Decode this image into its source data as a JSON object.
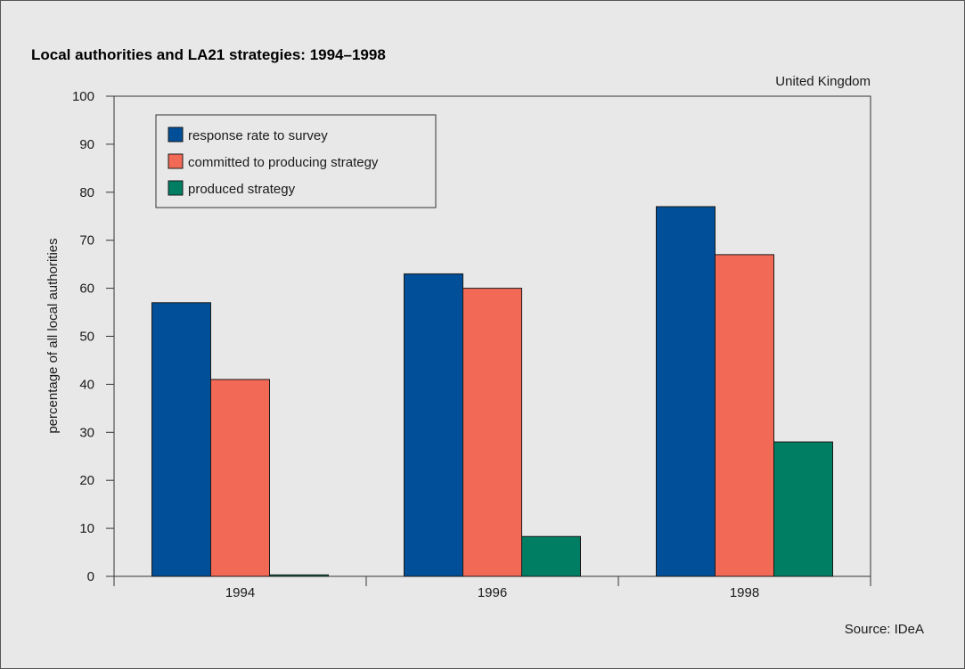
{
  "chart_data": {
    "type": "bar",
    "title": "Local authorities and LA21 strategies: 1994–1998",
    "subtitle": "United Kingdom",
    "source": "Source: IDeA",
    "xlabel": "",
    "ylabel": "percentage of all local authorities",
    "ylim": [
      0,
      100
    ],
    "yticks": [
      0,
      10,
      20,
      30,
      40,
      50,
      60,
      70,
      80,
      90,
      100
    ],
    "categories": [
      "1994",
      "1996",
      "1998"
    ],
    "series": [
      {
        "name": "response rate to survey",
        "color": "#004f98",
        "values": [
          57,
          63,
          77
        ]
      },
      {
        "name": "committed to producing strategy",
        "color": "#f26a55",
        "values": [
          41,
          60,
          67
        ]
      },
      {
        "name": "produced strategy",
        "color": "#007e64",
        "values": [
          0.3,
          8.3,
          28
        ]
      }
    ],
    "grid": false,
    "legend_position": "top-left",
    "background_color": "#e8e8e8"
  }
}
